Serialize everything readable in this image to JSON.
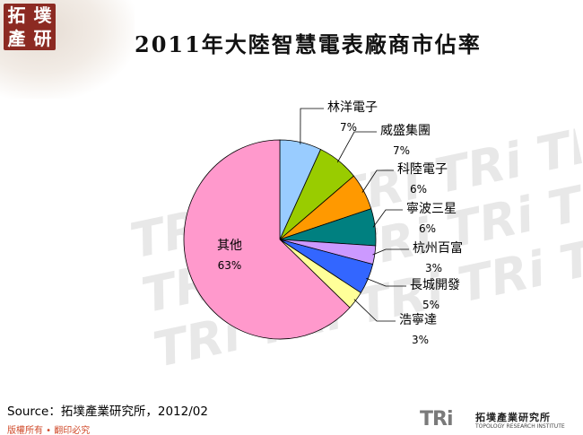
{
  "header": {
    "logo_chars": [
      "拓",
      "墣",
      "產",
      "研"
    ],
    "title": "2011年大陸智慧電表廠商市佔率"
  },
  "watermark": {
    "text": "TRi TRi TRi TRi TRi"
  },
  "chart_data": {
    "type": "pie",
    "title": "2011年大陸智慧電表廠商市佔率",
    "slices": [
      {
        "label": "林洋電子",
        "value": 7,
        "value_label": "7%",
        "color": "#99ccff"
      },
      {
        "label": "威盛集團",
        "value": 7,
        "value_label": "7%",
        "color": "#99cc00"
      },
      {
        "label": "科陸電子",
        "value": 6,
        "value_label": "6%",
        "color": "#ff9900"
      },
      {
        "label": "寧波三星",
        "value": 6,
        "value_label": "6%",
        "color": "#008080"
      },
      {
        "label": "杭州百富",
        "value": 3,
        "value_label": "3%",
        "color": "#cc99ff"
      },
      {
        "label": "長城開發",
        "value": 5,
        "value_label": "5%",
        "color": "#3366ff"
      },
      {
        "label": "浩寧達",
        "value": 3,
        "value_label": "3%",
        "color": "#ffff99"
      },
      {
        "label": "其他",
        "value": 63,
        "value_label": "63%",
        "color": "#ff99cc"
      }
    ]
  },
  "footer": {
    "source": "Source：拓墣產業研究所，2012/02",
    "copyright": "版權所有 • 翻印必究",
    "logo_mark": "TRi",
    "logo_name": "拓墣產業研究所",
    "logo_sub": "TOPOLOGY RESEARCH INSTITUTE"
  }
}
